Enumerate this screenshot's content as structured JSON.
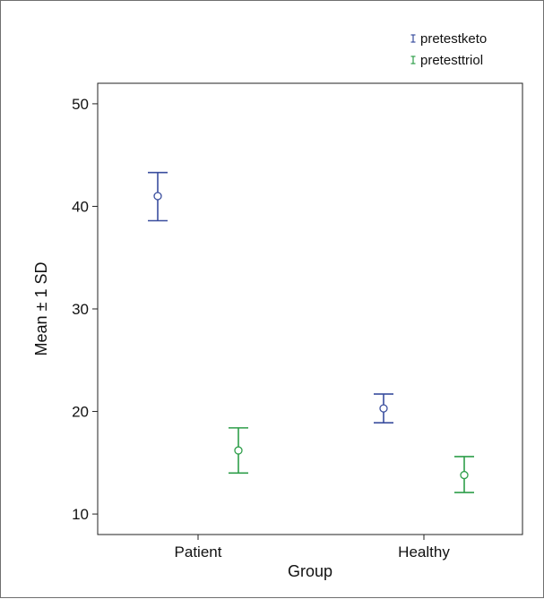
{
  "chart_data": {
    "type": "scatter",
    "xlabel": "Group",
    "ylabel": "Mean ± 1 SD",
    "categories": [
      "Patient",
      "Healthy"
    ],
    "ylim": [
      8,
      52
    ],
    "yticks": [
      10,
      20,
      30,
      40,
      50
    ],
    "grid": false,
    "legend_position": "top-right",
    "series": [
      {
        "name": "pretestketo",
        "color": "#3a4e9e",
        "mean": [
          41.0,
          20.3
        ],
        "lower": [
          38.6,
          18.9
        ],
        "upper": [
          43.3,
          21.7
        ]
      },
      {
        "name": "pretesttriol",
        "color": "#2e9e4a",
        "mean": [
          16.2,
          13.8
        ],
        "lower": [
          14.0,
          12.1
        ],
        "upper": [
          18.4,
          15.6
        ]
      }
    ]
  }
}
